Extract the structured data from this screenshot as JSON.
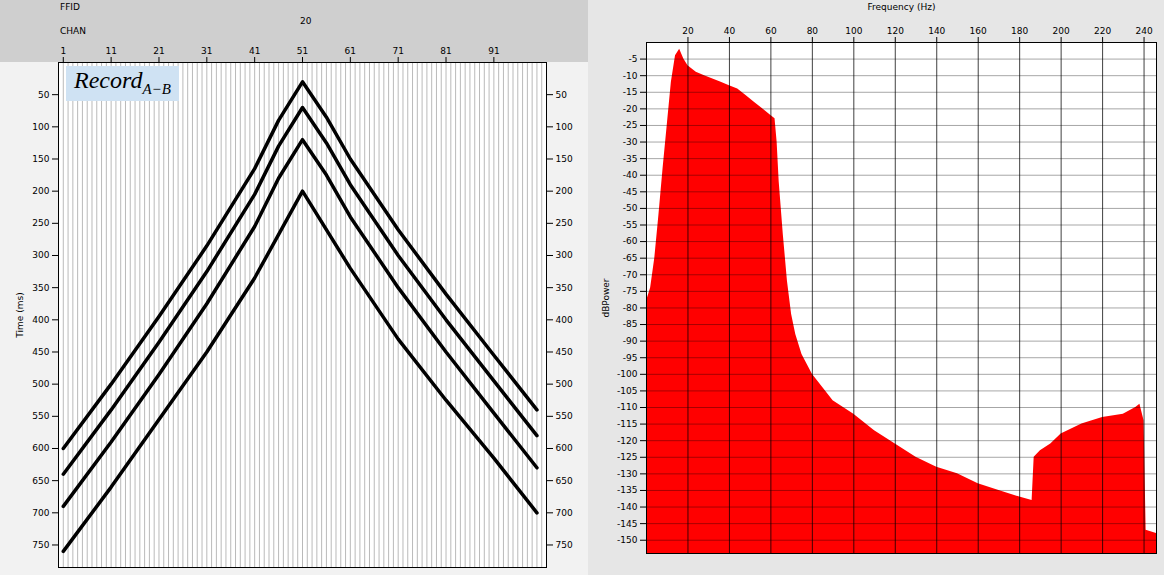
{
  "chart_data": [
    {
      "type": "line",
      "title": {
        "text": "Record",
        "subscript": "A−B"
      },
      "ffid_label": "FFID",
      "ffid": 20,
      "x_label": "CHAN",
      "y_label": "Time (ms)",
      "xlim": [
        0,
        102
      ],
      "xticks": [
        1,
        11,
        21,
        31,
        41,
        51,
        61,
        71,
        81,
        91
      ],
      "ylim": [
        0,
        785
      ],
      "yticks": [
        50,
        100,
        150,
        200,
        250,
        300,
        350,
        400,
        450,
        500,
        550,
        600,
        650,
        700,
        750
      ],
      "color": "#000000",
      "series": [
        {
          "x": [
            1,
            11,
            21,
            31,
            41,
            46,
            51,
            56,
            61,
            71,
            81,
            91,
            100
          ],
          "values": [
            600,
            500,
            395,
            285,
            165,
            90,
            30,
            85,
            150,
            260,
            360,
            455,
            540
          ]
        },
        {
          "x": [
            1,
            11,
            21,
            31,
            41,
            46,
            51,
            56,
            61,
            71,
            81,
            91,
            100
          ],
          "values": [
            640,
            540,
            435,
            325,
            205,
            130,
            70,
            125,
            190,
            300,
            400,
            495,
            580
          ]
        },
        {
          "x": [
            1,
            11,
            21,
            31,
            41,
            46,
            51,
            56,
            61,
            71,
            81,
            91,
            100
          ],
          "values": [
            690,
            590,
            485,
            375,
            255,
            180,
            120,
            175,
            240,
            350,
            450,
            545,
            630
          ]
        },
        {
          "x": [
            1,
            11,
            21,
            31,
            41,
            51,
            61,
            71,
            81,
            91,
            100
          ],
          "values": [
            760,
            660,
            555,
            450,
            335,
            200,
            320,
            430,
            525,
            615,
            700
          ]
        }
      ]
    },
    {
      "type": "area",
      "x_label": "Frequency (Hz)",
      "y_label": "dBPower",
      "xlim": [
        0,
        246
      ],
      "xticks": [
        20,
        40,
        60,
        80,
        100,
        120,
        140,
        160,
        180,
        200,
        220,
        240
      ],
      "ylim": [
        -154,
        0
      ],
      "yticks": [
        -5,
        -10,
        -15,
        -20,
        -25,
        -30,
        -35,
        -40,
        -45,
        -50,
        -55,
        -60,
        -65,
        -70,
        -75,
        -80,
        -85,
        -90,
        -95,
        -100,
        -105,
        -110,
        -115,
        -120,
        -125,
        -130,
        -135,
        -140,
        -145,
        -150
      ],
      "grid": true,
      "color": "#ff0000",
      "x": [
        0,
        2,
        4,
        6,
        8,
        10,
        12,
        14,
        16,
        18,
        20,
        24,
        28,
        32,
        36,
        40,
        44,
        48,
        52,
        56,
        60,
        62,
        63,
        64,
        66,
        68,
        70,
        72,
        75,
        80,
        85,
        90,
        100,
        110,
        120,
        130,
        140,
        150,
        160,
        170,
        180,
        186,
        187,
        190,
        195,
        200,
        210,
        220,
        230,
        236,
        238,
        240,
        241,
        246
      ],
      "values": [
        -78,
        -74,
        -65,
        -52,
        -38,
        -25,
        -12,
        -4,
        -2,
        -5,
        -7,
        -9,
        -10,
        -11,
        -12,
        -13,
        -14,
        -16,
        -18,
        -20,
        -22,
        -23,
        -30,
        -42,
        -58,
        -72,
        -82,
        -88,
        -94,
        -100,
        -104,
        -108,
        -112,
        -117,
        -121,
        -125,
        -128,
        -130,
        -133,
        -135,
        -137,
        -138,
        -125,
        -123,
        -121,
        -118,
        -115,
        -113,
        -112,
        -110,
        -109,
        -114,
        -147,
        -148
      ]
    }
  ]
}
